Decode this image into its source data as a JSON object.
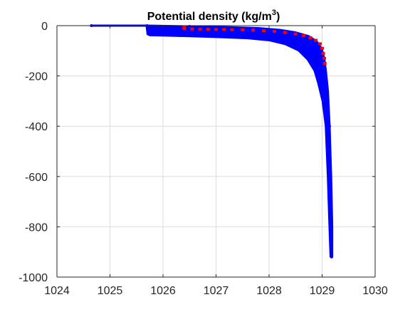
{
  "chart_data": {
    "type": "scatter",
    "title": "Potential density (kg/m",
    "title_sup": "3",
    "title_close": ")",
    "xlabel": "",
    "ylabel": "",
    "xlim": [
      1024,
      1030
    ],
    "ylim": [
      -1000,
      0
    ],
    "x_ticks": [
      1024,
      1025,
      1026,
      1027,
      1028,
      1029,
      1030
    ],
    "y_ticks": [
      0,
      -200,
      -400,
      -600,
      -800,
      -1000
    ],
    "x_tick_labels": [
      "1024",
      "1025",
      "1026",
      "1027",
      "1028",
      "1029",
      "1030"
    ],
    "y_tick_labels": [
      "0",
      "-200",
      "-400",
      "-600",
      "-800",
      "-1000"
    ],
    "grid": true,
    "legend": "none",
    "colors": {
      "blue": "#0000ff",
      "red": "#ff0000",
      "grid": "#dcdcdc",
      "axis": "#262626"
    },
    "series": [
      {
        "color": "#0000ff",
        "band_top": [
          [
            1024.65,
            0
          ],
          [
            1025.7,
            0
          ],
          [
            1026.5,
            -2
          ],
          [
            1027.2,
            -4
          ],
          [
            1027.8,
            -8
          ],
          [
            1028.2,
            -15
          ],
          [
            1028.5,
            -25
          ],
          [
            1028.75,
            -40
          ],
          [
            1028.9,
            -60
          ],
          [
            1029.0,
            -90
          ],
          [
            1029.05,
            -130
          ],
          [
            1029.08,
            -180
          ],
          [
            1029.12,
            -260
          ],
          [
            1029.15,
            -400
          ],
          [
            1029.18,
            -600
          ],
          [
            1029.2,
            -800
          ],
          [
            1029.2,
            -920
          ]
        ],
        "band_bottom": [
          [
            1029.15,
            -920
          ],
          [
            1029.13,
            -800
          ],
          [
            1029.1,
            -600
          ],
          [
            1029.06,
            -400
          ],
          [
            1029.0,
            -300
          ],
          [
            1028.92,
            -230
          ],
          [
            1028.85,
            -180
          ],
          [
            1028.72,
            -135
          ],
          [
            1028.55,
            -100
          ],
          [
            1028.3,
            -75
          ],
          [
            1028.0,
            -60
          ],
          [
            1027.6,
            -52
          ],
          [
            1027.0,
            -47
          ],
          [
            1026.5,
            -44
          ],
          [
            1026.0,
            -41
          ],
          [
            1025.75,
            -40
          ],
          [
            1025.7,
            -35
          ],
          [
            1025.68,
            0
          ]
        ],
        "profile": [
          [
            1024.65,
            0
          ],
          [
            1025.7,
            0
          ],
          [
            1026.5,
            -3
          ],
          [
            1027.5,
            -10
          ],
          [
            1028.0,
            -18
          ],
          [
            1028.4,
            -30
          ],
          [
            1028.7,
            -50
          ],
          [
            1028.9,
            -80
          ],
          [
            1029.0,
            -120
          ],
          [
            1029.05,
            -170
          ],
          [
            1029.1,
            -260
          ],
          [
            1029.14,
            -400
          ],
          [
            1029.16,
            -600
          ],
          [
            1029.18,
            -800
          ],
          [
            1029.18,
            -920
          ]
        ]
      },
      {
        "color": "#ff0000",
        "points": [
          [
            1026.4,
            -5
          ],
          [
            1026.4,
            -12
          ],
          [
            1026.55,
            -13
          ],
          [
            1026.7,
            -14
          ],
          [
            1026.85,
            -14
          ],
          [
            1027.0,
            -15
          ],
          [
            1027.15,
            -15
          ],
          [
            1027.3,
            -16
          ],
          [
            1027.5,
            -17
          ],
          [
            1027.7,
            -18
          ],
          [
            1027.9,
            -20
          ],
          [
            1028.1,
            -23
          ],
          [
            1028.3,
            -27
          ],
          [
            1028.5,
            -33
          ],
          [
            1028.65,
            -40
          ],
          [
            1028.78,
            -48
          ],
          [
            1028.88,
            -58
          ],
          [
            1028.96,
            -72
          ],
          [
            1029.0,
            -90
          ],
          [
            1029.02,
            -110
          ],
          [
            1029.04,
            -130
          ],
          [
            1029.05,
            -150
          ]
        ]
      }
    ]
  }
}
